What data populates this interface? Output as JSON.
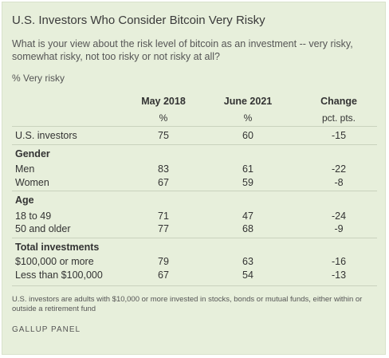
{
  "title": "U.S. Investors Who Consider Bitcoin Very Risky",
  "question": "What is your view about the risk level of bitcoin as an investment -- very risky, somewhat risky, not too risky or not risky at all?",
  "unit_label": "% Very risky",
  "columns": [
    {
      "header": "May 2018",
      "sub": "%"
    },
    {
      "header": "June 2021",
      "sub": "%"
    },
    {
      "header": "Change",
      "sub": "pct. pts."
    }
  ],
  "chart_data": {
    "type": "table",
    "columns": [
      "May 2018",
      "June 2021",
      "Change"
    ],
    "column_units": [
      "%",
      "%",
      "pct. pts."
    ],
    "groups": [
      {
        "name": "",
        "rows": [
          {
            "label": "U.S. investors",
            "values": [
              75,
              60,
              -15
            ]
          }
        ]
      },
      {
        "name": "Gender",
        "rows": [
          {
            "label": "Men",
            "values": [
              83,
              61,
              -22
            ]
          },
          {
            "label": "Women",
            "values": [
              67,
              59,
              -8
            ]
          }
        ]
      },
      {
        "name": "Age",
        "rows": [
          {
            "label": "18 to 49",
            "values": [
              71,
              47,
              -24
            ]
          },
          {
            "label": "50 and older",
            "values": [
              77,
              68,
              -9
            ]
          }
        ]
      },
      {
        "name": "Total investments",
        "rows": [
          {
            "label": "$100,000 or more",
            "values": [
              79,
              63,
              -16
            ]
          },
          {
            "label": "Less than $100,000",
            "values": [
              67,
              54,
              -13
            ]
          }
        ]
      }
    ]
  },
  "footnote": "U.S. investors are adults with $10,000 or more invested in stocks, bonds or mutual funds, either within or outside a retirement fund",
  "source": "GALLUP PANEL"
}
